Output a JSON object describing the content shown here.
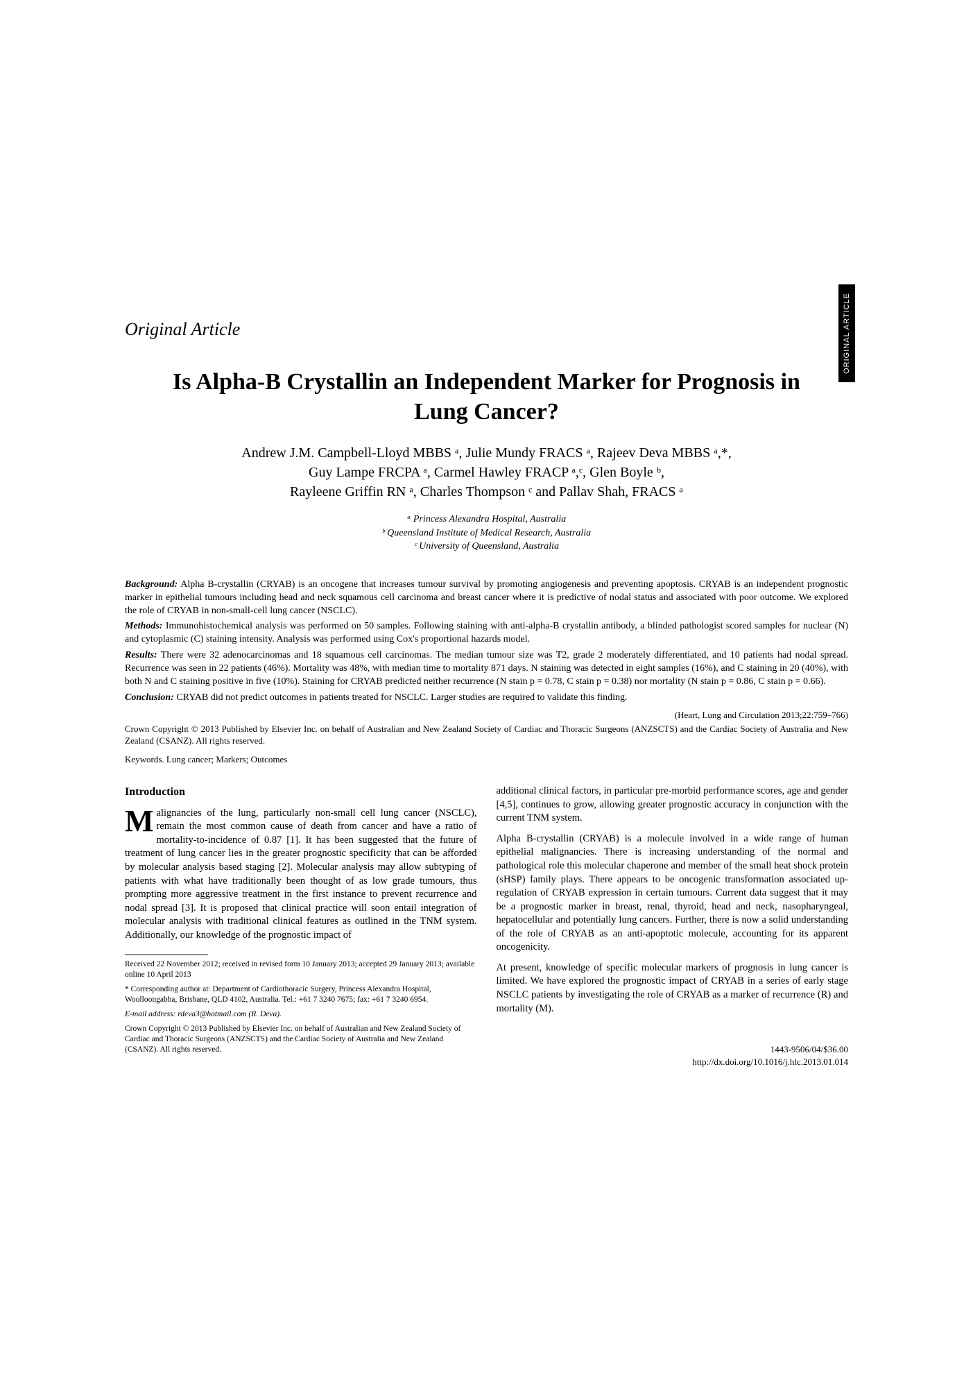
{
  "sideTab": "ORIGINAL ARTICLE",
  "articleType": "Original Article",
  "title": "Is Alpha-B Crystallin an Independent Marker for Prognosis in Lung Cancer?",
  "authors": {
    "line1": "Andrew J.M. Campbell-Lloyd MBBS ᵃ, Julie Mundy FRACS ᵃ, Rajeev Deva MBBS ᵃ,*,",
    "line2": "Guy Lampe FRCPA ᵃ, Carmel Hawley FRACP ᵃ,ᶜ, Glen Boyle ᵇ,",
    "line3": "Rayleene Griffin RN ᵃ, Charles Thompson ᶜ and Pallav Shah, FRACS ᵃ"
  },
  "affiliations": {
    "a": "ᵃ Princess Alexandra Hospital, Australia",
    "b": "ᵇ Queensland Institute of Medical Research, Australia",
    "c": "ᶜ University of Queensland, Australia"
  },
  "abstract": {
    "background": "Alpha B-crystallin (CRYAB) is an oncogene that increases tumour survival by promoting angiogenesis and preventing apoptosis. CRYAB is an independent prognostic marker in epithelial tumours including head and neck squamous cell carcinoma and breast cancer where it is predictive of nodal status and associated with poor outcome. We explored the role of CRYAB in non-small-cell lung cancer (NSCLC).",
    "methods": "Immunohistochemical analysis was performed on 50 samples. Following staining with anti-alpha-B crystallin antibody, a blinded pathologist scored samples for nuclear (N) and cytoplasmic (C) staining intensity. Analysis was performed using Cox's proportional hazards model.",
    "results": "There were 32 adenocarcinomas and 18 squamous cell carcinomas. The median tumour size was T2, grade 2 moderately differentiated, and 10 patients had nodal spread. Recurrence was seen in 22 patients (46%). Mortality was 48%, with median time to mortality 871 days. N staining was detected in eight samples (16%), and C staining in 20 (40%), with both N and C staining positive in five (10%). Staining for CRYAB predicted neither recurrence (N stain p = 0.78, C stain p = 0.38) nor mortality (N stain p = 0.86, C stain p = 0.66).",
    "conclusion": "CRYAB did not predict outcomes in patients treated for NSCLC. Larger studies are required to validate this finding."
  },
  "labels": {
    "background": "Background:",
    "methods": "Methods:",
    "results": "Results:",
    "conclusion": "Conclusion:"
  },
  "citation": "(Heart, Lung and Circulation 2013;22:759–766)",
  "copyrightAbs": "Crown Copyright © 2013 Published by Elsevier Inc. on behalf of Australian and New Zealand Society of Cardiac and Thoracic Surgeons (ANZSCTS) and the Cardiac Society of Australia and New Zealand (CSANZ). All rights reserved.",
  "keywords": "Keywords. Lung cancer; Markers; Outcomes",
  "intro": {
    "heading": "Introduction",
    "p1_dropcap": "M",
    "p1": "alignancies of the lung, particularly non-small cell lung cancer (NSCLC), remain the most common cause of death from cancer and have a ratio of mortality-to-incidence of 0.87 [1]. It has been suggested that the future of treatment of lung cancer lies in the greater prognostic specificity that can be afforded by molecular analysis based staging [2]. Molecular analysis may allow subtyping of patients with what have traditionally been thought of as low grade tumours, thus prompting more aggressive treatment in the first instance to prevent recurrence and nodal spread [3]. It is proposed that clinical practice will soon entail integration of molecular analysis with traditional clinical features as outlined in the TNM system. Additionally, our knowledge of the prognostic impact of",
    "p2": "additional clinical factors, in particular pre-morbid performance scores, age and gender [4,5], continues to grow, allowing greater prognostic accuracy in conjunction with the current TNM system.",
    "p3": "Alpha B-crystallin (CRYAB) is a molecule involved in a wide range of human epithelial malignancies. There is increasing understanding of the normal and pathological role this molecular chaperone and member of the small heat shock protein (sHSP) family plays. There appears to be oncogenic transformation associated up-regulation of CRYAB expression in certain tumours. Current data suggest that it may be a prognostic marker in breast, renal, thyroid, head and neck, nasopharyngeal, hepatocellular and potentially lung cancers. Further, there is now a solid understanding of the role of CRYAB as an anti-apoptotic molecule, accounting for its apparent oncogenicity.",
    "p4": "At present, knowledge of specific molecular markers of prognosis in lung cancer is limited. We have explored the prognostic impact of CRYAB in a series of early stage NSCLC patients by investigating the role of CRYAB as a marker of recurrence (R) and mortality (M)."
  },
  "footnotes": {
    "received": "Received 22 November 2012; received in revised form 10 January 2013; accepted 29 January 2013; available online 10 April 2013",
    "corresponding": "* Corresponding author at: Department of Cardiothoracic Surgery, Princess Alexandra Hospital, Woolloongabba, Brisbane, QLD 4102, Australia. Tel.: +61 7 3240 7675; fax: +61 7 3240 6954.",
    "email": "E-mail address: rdeva3@hotmail.com (R. Deva).",
    "copyright": "Crown Copyright © 2013 Published by Elsevier Inc. on behalf of Australian and New Zealand Society of Cardiac and Thoracic Surgeons (ANZSCTS) and the Cardiac Society of Australia and New Zealand (CSANZ). All rights reserved."
  },
  "footerRight": {
    "issn": "1443-9506/04/$36.00",
    "doi": "http://dx.doi.org/10.1016/j.hlc.2013.01.014"
  }
}
